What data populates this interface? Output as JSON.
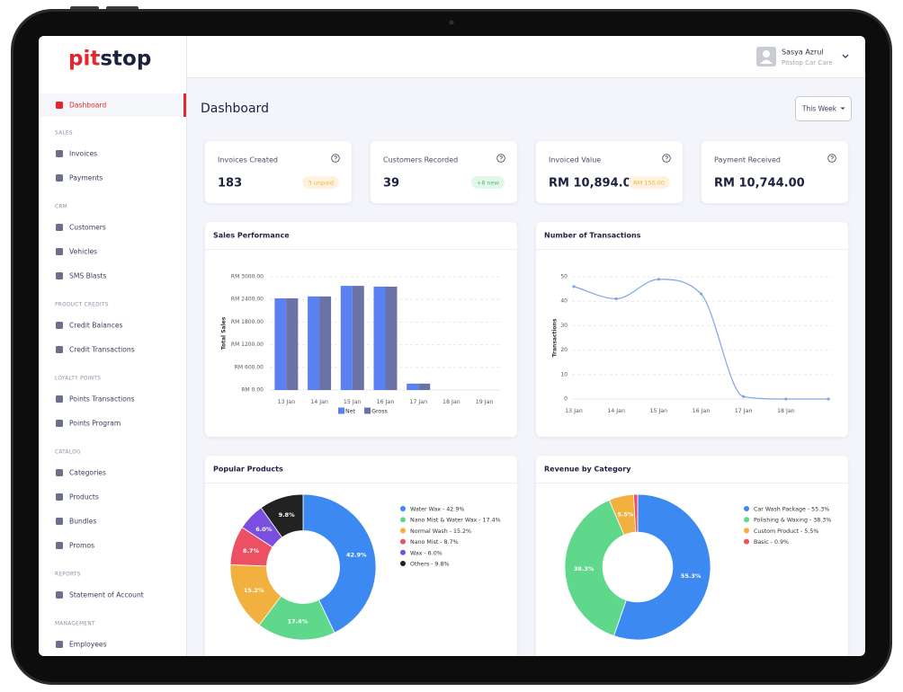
{
  "app": {
    "logo": [
      "pit",
      "stop"
    ],
    "user": {
      "name": "Sasya Azrul",
      "company": "Pitstop Car Care"
    },
    "page_title": "Dashboard",
    "period": "This Week",
    "nav": {
      "top": "Dashboard",
      "sections": [
        {
          "title": "SALES",
          "items": [
            "Invoices",
            "Payments"
          ]
        },
        {
          "title": "CRM",
          "items": [
            "Customers",
            "Vehicles",
            "SMS Blasts"
          ]
        },
        {
          "title": "PRODUCT CREDITS",
          "items": [
            "Credit Balances",
            "Credit Transactions"
          ]
        },
        {
          "title": "LOYALTY POINTS",
          "items": [
            "Points Transactions",
            "Points Program"
          ]
        },
        {
          "title": "CATALOG",
          "items": [
            "Categories",
            "Products",
            "Bundles",
            "Promos"
          ]
        },
        {
          "title": "REPORTS",
          "items": [
            "Statement of Account"
          ]
        },
        {
          "title": "MANAGEMENT",
          "items": [
            "Employees"
          ]
        }
      ]
    },
    "stats": [
      {
        "label": "Invoices Created",
        "value": 183,
        "badge": "3 unpaid",
        "badge_tone": "warn"
      },
      {
        "label": "Customers Recorded",
        "value": 39,
        "badge": "+8 new",
        "badge_tone": "ok"
      },
      {
        "label": "Invoiced Value",
        "value": "RM 10,894.00",
        "badge": "RM 150.00",
        "badge_tone": "warn"
      },
      {
        "label": "Payment Received",
        "value": "RM 10,744.00"
      }
    ]
  },
  "chart_data": [
    {
      "type": "bar",
      "title": "Sales Performance",
      "ylabel": "Total Sales",
      "categories": [
        "13 Jan",
        "14 Jan",
        "15 Jan",
        "16 Jan",
        "17 Jan",
        "18 Jan",
        "19 Jan"
      ],
      "series": [
        {
          "name": "Net",
          "color": "#5a80f2",
          "values": [
            2430,
            2480,
            2760,
            2740,
            170,
            0,
            0
          ]
        },
        {
          "name": "Gross",
          "color": "#6a72a6",
          "values": [
            2430,
            2480,
            2760,
            2740,
            170,
            0,
            0
          ]
        }
      ],
      "ylim": [
        0,
        3000
      ],
      "yticks": [
        {
          "value": 0,
          "label": "RM 0.00"
        },
        {
          "value": 600,
          "label": "RM 600.00"
        },
        {
          "value": 1200,
          "label": "RM 1200.00"
        },
        {
          "value": 1800,
          "label": "RM 1800.00"
        },
        {
          "value": 2400,
          "label": "RM 2400.00"
        },
        {
          "value": 3000,
          "label": "RM 3000.00"
        }
      ],
      "grid": true,
      "legend": "bottom"
    },
    {
      "type": "line",
      "title": "Number of Transactions",
      "ylabel": "Transactions",
      "categories": [
        "13 Jan",
        "14 Jan",
        "15 Jan",
        "16 Jan",
        "17 Jan",
        "18 Jan",
        null
      ],
      "values": [
        46,
        41,
        49,
        43,
        1,
        0,
        0
      ],
      "color": "#7ea6e3",
      "ylim": [
        0,
        50
      ],
      "yticks": [
        0,
        10,
        20,
        30,
        40,
        50
      ],
      "grid": true,
      "smooth": true
    },
    {
      "type": "pie",
      "title": "Popular Products",
      "categories": [
        "Water Wax - 42.9%",
        "Nano Mist & Water Wax - 17.4%",
        "Normal Wash - 15.2%",
        "Nano Mist - 8.7%",
        "Wax - 6.0%",
        "Others - 9.8%"
      ],
      "values": [
        42.9,
        17.4,
        15.2,
        8.7,
        6.0,
        9.8
      ],
      "value_labels": [
        "42.9%",
        "17.4%",
        "15.2%",
        "8.7%",
        "6.0%",
        "9.8%"
      ],
      "colors": [
        "#3d89f2",
        "#5fd88c",
        "#f2b13f",
        "#ec5062",
        "#7a4fe0",
        "#222222"
      ],
      "hole": 0.5,
      "legend": "right"
    },
    {
      "type": "pie",
      "title": "Revenue by Category",
      "categories": [
        "Car Wash Package - 55.3%",
        "Polishing & Waxing - 38.3%",
        "Custom Product - 5.5%",
        "Basic - 0.9%"
      ],
      "values": [
        55.3,
        38.3,
        5.5,
        0.9
      ],
      "value_labels": [
        "55.3%",
        "38.3%",
        "5.5%",
        null
      ],
      "colors": [
        "#3d89f2",
        "#5fd88c",
        "#f2b13f",
        "#ec5062"
      ],
      "hole": 0.48,
      "legend": "right"
    }
  ]
}
